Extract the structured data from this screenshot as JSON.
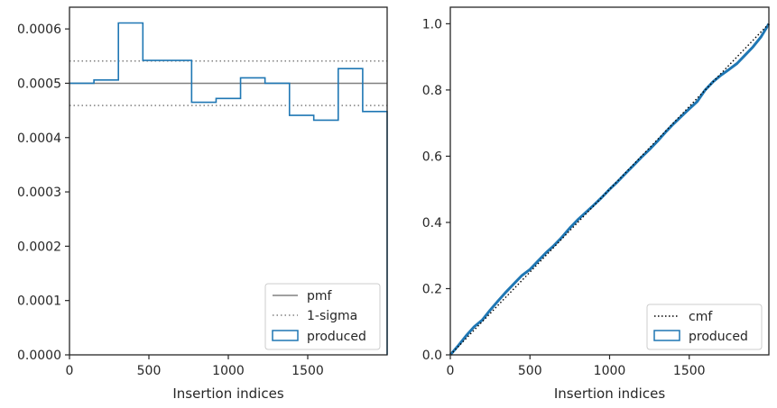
{
  "colors": {
    "produced": "#1f77b4",
    "reference": "#808080",
    "cmf": "#000000",
    "axes": "#262626"
  },
  "chart_data": [
    {
      "type": "line",
      "xlabel": "Insertion indices",
      "ylabel": "",
      "xlim": [
        0,
        2000
      ],
      "ylim": [
        0,
        0.00064
      ],
      "x_ticks": [
        {
          "value": 0,
          "label": "0"
        },
        {
          "value": 500,
          "label": "500"
        },
        {
          "value": 1000,
          "label": "1000"
        },
        {
          "value": 1500,
          "label": "1500"
        }
      ],
      "y_ticks": [
        {
          "value": 0,
          "label": "0.0000"
        },
        {
          "value": 0.0001,
          "label": "0.0001"
        },
        {
          "value": 0.0002,
          "label": "0.0002"
        },
        {
          "value": 0.0003,
          "label": "0.0003"
        },
        {
          "value": 0.0004,
          "label": "0.0004"
        },
        {
          "value": 0.0005,
          "label": "0.0005"
        },
        {
          "value": 0.0006,
          "label": "0.0006"
        }
      ],
      "grid": false,
      "legend_position": "lower right",
      "legend": [
        "pmf",
        "1-sigma",
        "produced"
      ],
      "pmf_value": 0.0005,
      "sigma_bounds": [
        0.000459,
        0.000541
      ],
      "histogram": {
        "name": "produced",
        "bin_edges": [
          0,
          154,
          308,
          462,
          615,
          769,
          923,
          1077,
          1231,
          1385,
          1538,
          1692,
          1846,
          2000
        ],
        "values": [
          0.0005,
          0.000506,
          0.000611,
          0.000542,
          0.000542,
          0.000465,
          0.000472,
          0.00051,
          0.0005,
          0.000441,
          0.000432,
          0.000527,
          0.000448
        ]
      }
    },
    {
      "type": "line",
      "xlabel": "Insertion indices",
      "ylabel": "",
      "xlim": [
        0,
        2000
      ],
      "ylim": [
        0,
        1.05
      ],
      "x_ticks": [
        {
          "value": 0,
          "label": "0"
        },
        {
          "value": 500,
          "label": "500"
        },
        {
          "value": 1000,
          "label": "1000"
        },
        {
          "value": 1500,
          "label": "1500"
        }
      ],
      "y_ticks": [
        {
          "value": 0,
          "label": "0.0"
        },
        {
          "value": 0.2,
          "label": "0.2"
        },
        {
          "value": 0.4,
          "label": "0.4"
        },
        {
          "value": 0.6,
          "label": "0.6"
        },
        {
          "value": 0.8,
          "label": "0.8"
        },
        {
          "value": 1.0,
          "label": "1.0"
        }
      ],
      "grid": false,
      "legend_position": "lower right",
      "legend": [
        "cmf",
        "produced"
      ],
      "cmf": {
        "name": "cmf",
        "x": [
          0,
          2000
        ],
        "y": [
          0,
          1.0
        ]
      },
      "produced": {
        "name": "produced",
        "x": [
          0,
          50,
          100,
          150,
          200,
          250,
          300,
          350,
          400,
          450,
          500,
          550,
          600,
          650,
          700,
          750,
          800,
          850,
          900,
          950,
          1000,
          1050,
          1100,
          1150,
          1200,
          1250,
          1300,
          1350,
          1400,
          1450,
          1500,
          1550,
          1600,
          1650,
          1700,
          1750,
          1800,
          1850,
          1900,
          1950,
          2000
        ],
        "y": [
          0,
          0.028,
          0.058,
          0.085,
          0.105,
          0.135,
          0.163,
          0.19,
          0.215,
          0.24,
          0.258,
          0.283,
          0.308,
          0.33,
          0.355,
          0.383,
          0.408,
          0.43,
          0.452,
          0.475,
          0.5,
          0.523,
          0.548,
          0.572,
          0.597,
          0.62,
          0.645,
          0.672,
          0.697,
          0.72,
          0.743,
          0.765,
          0.8,
          0.825,
          0.845,
          0.862,
          0.88,
          0.905,
          0.93,
          0.96,
          1.0
        ]
      }
    }
  ]
}
